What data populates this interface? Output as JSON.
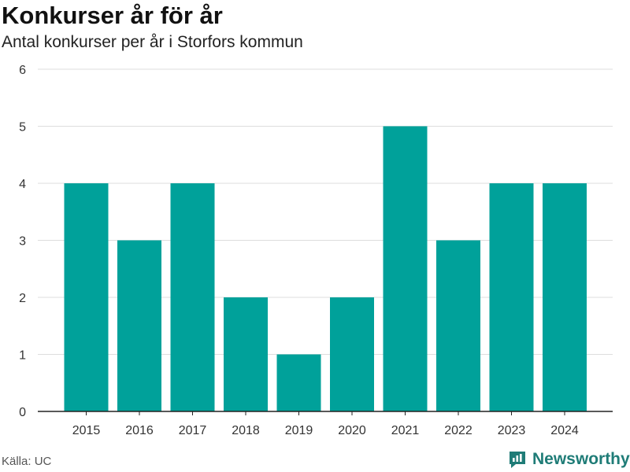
{
  "chart_data": {
    "type": "bar",
    "title": "Konkurser år för år",
    "subtitle": "Antal konkurser per år i Storfors kommun",
    "categories": [
      "2015",
      "2016",
      "2017",
      "2018",
      "2019",
      "2020",
      "2021",
      "2022",
      "2023",
      "2024"
    ],
    "series": [
      {
        "values": [
          4,
          3,
          4,
          2,
          1,
          2,
          5,
          3,
          4,
          4
        ]
      }
    ],
    "xlabel": "",
    "ylabel": "",
    "ylim": [
      0,
      6
    ],
    "yticks": [
      "0",
      "1",
      "2",
      "3",
      "4",
      "5",
      "6"
    ],
    "grid": true,
    "legend": "none",
    "bar_color": "#00a19a"
  },
  "footer": {
    "source": "Källa: UC",
    "brand": "Newsworthy",
    "brand_icon": "newsworthy-logo-icon"
  }
}
